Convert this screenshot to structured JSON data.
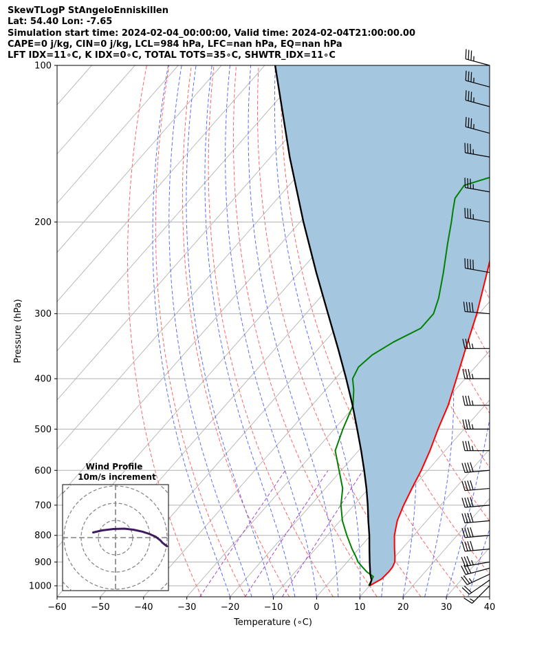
{
  "header": {
    "line1": "SkewTLogP StAngeloEnniskillen",
    "line2": "Lat: 54.40   Lon: -7.65",
    "line3": "Simulation start time: 2024-02-04_00:00:00, Valid time: 2024-02-04T21:00:00.00",
    "line4": "CAPE=0 j/kg, CIN=0 j/kg, LCL=984 hPa, LFC=nan hPa, EQ=nan hPa",
    "line5": "LFT IDX=11∘C, K IDX=0∘C, TOTAL TOTS=35∘C, SHWTR_IDX=11∘C"
  },
  "chart_data": [
    {
      "type": "line",
      "subtype": "skew-T log-p",
      "xlabel": "Temperature (∘C)",
      "ylabel": "Pressure (hPa)",
      "xlim": [
        -60,
        40
      ],
      "ylim": [
        1050,
        100
      ],
      "y_scale": "log",
      "x_ticks": [
        -60,
        -50,
        -40,
        -30,
        -20,
        -10,
        0,
        10,
        20,
        30,
        40
      ],
      "x_tick_labels": [
        "−60",
        "−50",
        "−40",
        "−30",
        "−20",
        "−10",
        "0",
        "10",
        "20",
        "30",
        "40"
      ],
      "y_ticks": [
        100,
        200,
        300,
        400,
        500,
        600,
        700,
        800,
        900,
        1000
      ],
      "grid": true,
      "series": [
        {
          "role": "temperature",
          "color": "#ff0000",
          "pressure": [
            1000,
            970,
            940,
            920,
            900,
            880,
            850,
            800,
            750,
            700,
            650,
            600,
            550,
            500,
            450,
            400,
            350,
            300,
            250,
            200,
            190,
            180,
            170,
            160,
            150,
            140,
            130,
            120,
            110,
            100
          ],
          "temperature": [
            10,
            11.4,
            11.6,
            11.5,
            11,
            10,
            8.3,
            5.5,
            3.2,
            1.5,
            0,
            -1.5,
            -3.5,
            -6,
            -8.5,
            -12,
            -16,
            -20.5,
            -26.5,
            -34,
            -36.7,
            -38.8,
            -38.4,
            -34,
            -33.8,
            -33.5,
            -30.5,
            -27,
            -21,
            -16.4
          ]
        },
        {
          "role": "dewpoint",
          "color": "#008000",
          "pressure": [
            1000,
            960,
            940,
            920,
            900,
            880,
            850,
            800,
            750,
            700,
            650,
            600,
            550,
            500,
            450,
            420,
            400,
            380,
            360,
            340,
            320,
            300,
            280,
            250,
            220,
            200,
            190,
            180,
            170,
            160,
            150,
            140,
            130,
            120,
            110,
            100
          ],
          "temperature": [
            9.8,
            9,
            6.5,
            4.5,
            2.5,
            1,
            -1.5,
            -5.5,
            -9.5,
            -13,
            -16,
            -20.5,
            -25.4,
            -28,
            -30.5,
            -33.5,
            -36,
            -37,
            -36.3,
            -34,
            -30.5,
            -30.5,
            -32.5,
            -36.6,
            -41.5,
            -45,
            -47,
            -49,
            -49.5,
            -42,
            -39,
            -36.8,
            -37,
            -40.3,
            -38.4,
            -35.8
          ]
        },
        {
          "role": "parcel-profile",
          "color": "#000000",
          "pressure": [
            1000,
            975,
            950,
            900,
            850,
            800,
            750,
            700,
            650,
            600,
            550,
            500,
            450,
            400,
            350,
            300,
            250,
            200,
            150,
            100
          ],
          "temperature": [
            10,
            9.3,
            7.8,
            5.2,
            2.5,
            -0.3,
            -3.5,
            -6.8,
            -10.5,
            -14.7,
            -19.4,
            -24.7,
            -30.6,
            -37.5,
            -45.5,
            -54.9,
            -66,
            -79.2,
            -95.6,
            -117.6
          ]
        }
      ],
      "shaded_region": {
        "between": [
          "temperature",
          "parcel-profile"
        ],
        "color": "#a4c6df"
      },
      "background_lines": {
        "isotherms": {
          "color": "#aaaaaa",
          "step": 10
        },
        "dry_adiabats": {
          "color": "#ff5555",
          "style": "dashed"
        },
        "moist_adiabats": {
          "color": "#4a5cff",
          "style": "dashed"
        },
        "mixing_ratio": {
          "color": "#9932cc",
          "style": "dashed"
        }
      },
      "wind_barbs": {
        "color": "#000000",
        "pressure": [
          1000,
          975,
          950,
          925,
          900,
          850,
          800,
          750,
          700,
          650,
          600,
          550,
          500,
          450,
          400,
          350,
          300,
          250,
          200,
          175,
          150,
          135,
          120,
          110,
          100
        ],
        "speed_kt": [
          15,
          20,
          25,
          30,
          35,
          40,
          40,
          40,
          40,
          40,
          40,
          35,
          35,
          35,
          35,
          35,
          40,
          40,
          35,
          35,
          35,
          35,
          35,
          35,
          35
        ],
        "direction_deg": [
          225,
          235,
          245,
          255,
          260,
          265,
          265,
          265,
          265,
          265,
          265,
          270,
          270,
          270,
          270,
          270,
          275,
          280,
          280,
          280,
          280,
          285,
          285,
          285,
          285
        ]
      }
    },
    {
      "type": "line",
      "subtype": "hodograph",
      "title": "Wind Profile",
      "subtitle": "10m/s increment",
      "ring_step_ms": 10,
      "line_color": "#3f1b5e",
      "u_ms": [
        11.5,
        11,
        10.5,
        10,
        9,
        7.5,
        6,
        4,
        2,
        -0.5,
        -3,
        -5
      ],
      "v_ms": [
        -5,
        -4,
        -3,
        -1.5,
        0.5,
        2.2,
        3.5,
        4.6,
        5.2,
        5.0,
        4.2,
        3.0
      ]
    }
  ]
}
